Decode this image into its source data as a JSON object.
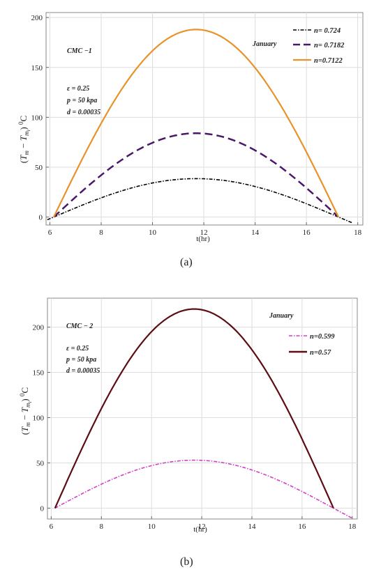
{
  "chart_data": [
    {
      "type": "line",
      "xlabel": "t(hr)",
      "ylabel": "(T_m − T_mi) °C",
      "xlim": [
        5.85,
        18.2
      ],
      "ylim": [
        -8,
        205
      ],
      "xticks": [
        6,
        8,
        10,
        12,
        14,
        16,
        18
      ],
      "yticks": [
        0,
        50,
        100,
        150,
        200
      ],
      "grid": true,
      "legend_placement": "top-right",
      "annotations": {
        "month": "January",
        "sample": "CMC −1",
        "epsilon": "ε = 0.25",
        "pressure": "p = 50 kpa",
        "d": "d = 0.00035"
      },
      "series": [
        {
          "name": "n= 0.724",
          "color": "#000000",
          "dash": "dashdot",
          "start": 5.9,
          "end": 17.8,
          "rise": 6.15,
          "set": 17.25,
          "peak": 38.5
        },
        {
          "name": "n= 0.7182",
          "color": "#4b1768",
          "dash": "dash",
          "start": 6.15,
          "end": 17.25,
          "rise": 6.15,
          "set": 17.25,
          "peak": 84
        },
        {
          "name": "n=0.7122",
          "color": "#e8922b",
          "dash": "solid",
          "start": 6.15,
          "end": 17.25,
          "rise": 6.15,
          "set": 17.25,
          "peak": 188
        }
      ]
    },
    {
      "type": "line",
      "xlabel": "t(hr)",
      "ylabel": "(T_m − T_mi) °C",
      "xlim": [
        5.85,
        18.2
      ],
      "ylim": [
        -12,
        232
      ],
      "xticks": [
        6,
        8,
        10,
        12,
        14,
        16,
        18
      ],
      "yticks": [
        0,
        50,
        100,
        150,
        200
      ],
      "grid": true,
      "legend_placement": "right",
      "annotations": {
        "month": "January",
        "sample": "CMC − 2",
        "epsilon": "ε = 0.25",
        "pressure": "p = 50 kpa",
        "d": "d = 0.00035"
      },
      "series": [
        {
          "name": "n=0.599",
          "color": "#d23fc9",
          "dash": "dashdot",
          "start": 6.15,
          "end": 18.0,
          "rise": 6.15,
          "set": 17.25,
          "peak": 53
        },
        {
          "name": "n=0.57",
          "color": "#5c0d13",
          "dash": "solid",
          "start": 6.15,
          "end": 17.25,
          "rise": 6.15,
          "set": 17.25,
          "peak": 220
        }
      ]
    }
  ],
  "captions": [
    "(a)",
    "(b)"
  ]
}
